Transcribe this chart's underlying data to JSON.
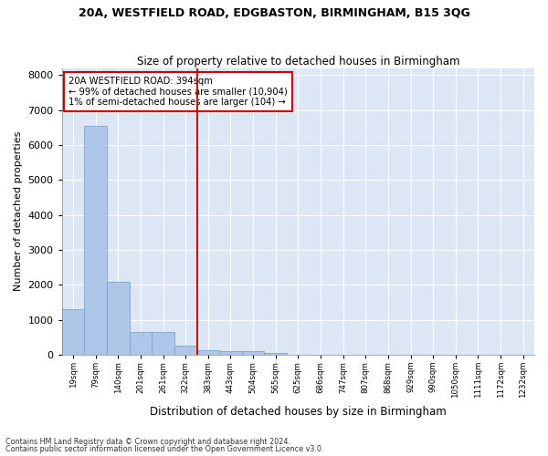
{
  "title1": "20A, WESTFIELD ROAD, EDGBASTON, BIRMINGHAM, B15 3QG",
  "title2": "Size of property relative to detached houses in Birmingham",
  "xlabel": "Distribution of detached houses by size in Birmingham",
  "ylabel": "Number of detached properties",
  "bar_color": "#aec6e8",
  "bar_edge_color": "#6a9fd0",
  "background_color": "#dce6f5",
  "grid_color": "#ffffff",
  "annotation_box_color": "#cc0000",
  "vline_color": "#cc0000",
  "annotation_text": "20A WESTFIELD ROAD: 394sqm\n← 99% of detached houses are smaller (10,904)\n1% of semi-detached houses are larger (104) →",
  "footnote1": "Contains HM Land Registry data © Crown copyright and database right 2024.",
  "footnote2": "Contains public sector information licensed under the Open Government Licence v3.0.",
  "tick_labels": [
    "19sqm",
    "79sqm",
    "140sqm",
    "201sqm",
    "261sqm",
    "322sqm",
    "383sqm",
    "443sqm",
    "504sqm",
    "565sqm",
    "625sqm",
    "686sqm",
    "747sqm",
    "807sqm",
    "868sqm",
    "929sqm",
    "990sqm",
    "1050sqm",
    "1111sqm",
    "1172sqm",
    "1232sqm"
  ],
  "bar_heights": [
    1300,
    6550,
    2080,
    650,
    650,
    260,
    130,
    90,
    90,
    60,
    0,
    0,
    0,
    0,
    0,
    0,
    0,
    0,
    0,
    0,
    0
  ],
  "ylim": [
    0,
    8200
  ],
  "yticks": [
    0,
    1000,
    2000,
    3000,
    4000,
    5000,
    6000,
    7000,
    8000
  ],
  "vline_x_index": 6,
  "figwidth": 6.0,
  "figheight": 5.0,
  "dpi": 100
}
